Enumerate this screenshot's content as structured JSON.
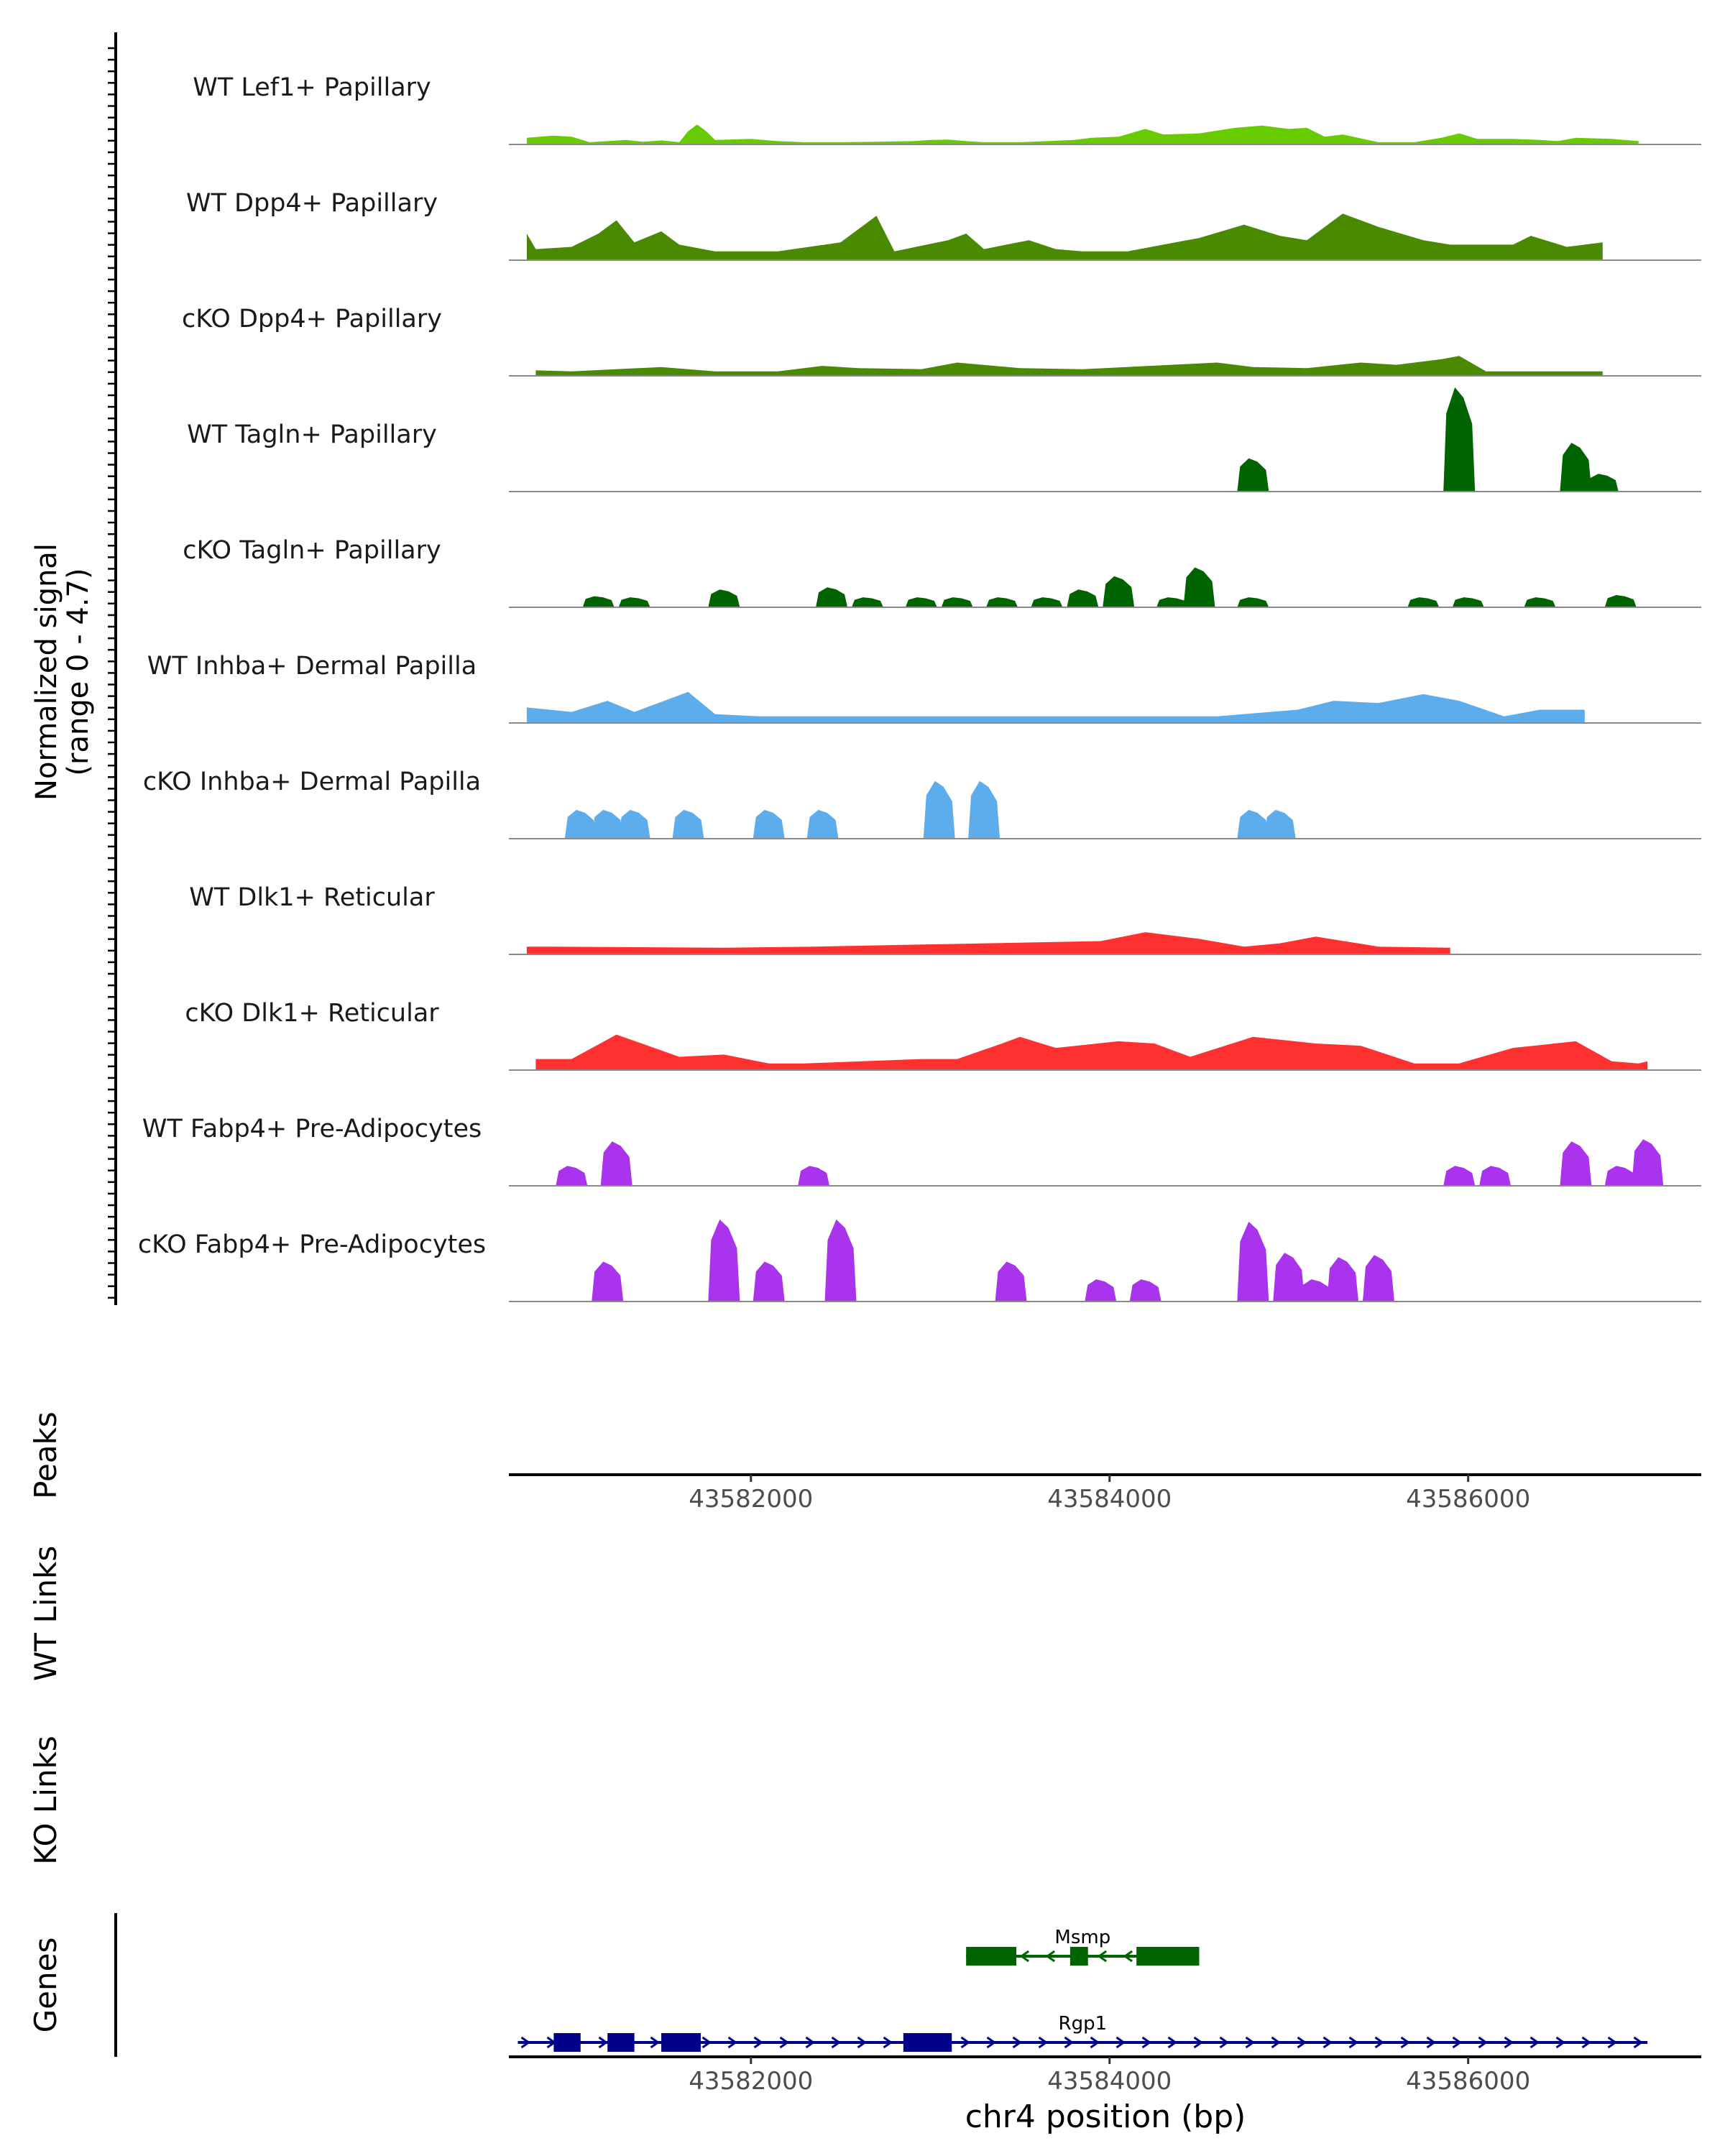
{
  "chart_data": {
    "type": "area",
    "title": "",
    "ylabel_line1": "Normalized signal",
    "ylabel_line2": "(range 0 - 4.7)",
    "ylim": [
      0,
      4.7
    ],
    "xlim": [
      43580650,
      43587300
    ],
    "xlabel": "chr4 position (bp)",
    "x_ticks": [
      43582000,
      43584000,
      43586000
    ],
    "x_tick_labels": [
      "43582000",
      "43584000",
      "43586000"
    ],
    "panel_labels": {
      "peaks": "Peaks",
      "wt_links": "WT Links",
      "ko_links": "KO Links",
      "genes": "Genes"
    },
    "tracks": [
      {
        "name": "WT Lef1+ Papillary",
        "color": "#66CC00",
        "fill": "continuous",
        "points": [
          [
            43580750,
            0.3
          ],
          [
            43580900,
            0.4
          ],
          [
            43581000,
            0.35
          ],
          [
            43581100,
            0.1
          ],
          [
            43581200,
            0.15
          ],
          [
            43581300,
            0.2
          ],
          [
            43581400,
            0.12
          ],
          [
            43581500,
            0.18
          ],
          [
            43581600,
            0.1
          ],
          [
            43581650,
            0.6
          ],
          [
            43581700,
            0.9
          ],
          [
            43581750,
            0.6
          ],
          [
            43581800,
            0.2
          ],
          [
            43582000,
            0.25
          ],
          [
            43582150,
            0.15
          ],
          [
            43582300,
            0.1
          ],
          [
            43582500,
            0.1
          ],
          [
            43582700,
            0.12
          ],
          [
            43582900,
            0.15
          ],
          [
            43583000,
            0.2
          ],
          [
            43583100,
            0.22
          ],
          [
            43583200,
            0.15
          ],
          [
            43583300,
            0.1
          ],
          [
            43583500,
            0.1
          ],
          [
            43583650,
            0.15
          ],
          [
            43583800,
            0.2
          ],
          [
            43583900,
            0.3
          ],
          [
            43584050,
            0.35
          ],
          [
            43584200,
            0.7
          ],
          [
            43584300,
            0.45
          ],
          [
            43584500,
            0.5
          ],
          [
            43584700,
            0.75
          ],
          [
            43584850,
            0.85
          ],
          [
            43585000,
            0.7
          ],
          [
            43585100,
            0.75
          ],
          [
            43585200,
            0.35
          ],
          [
            43585300,
            0.45
          ],
          [
            43585500,
            0.1
          ],
          [
            43585700,
            0.1
          ],
          [
            43585850,
            0.3
          ],
          [
            43585950,
            0.5
          ],
          [
            43586050,
            0.25
          ],
          [
            43586250,
            0.25
          ],
          [
            43586400,
            0.2
          ],
          [
            43586500,
            0.15
          ],
          [
            43586600,
            0.3
          ],
          [
            43586800,
            0.25
          ],
          [
            43586950,
            0.15
          ]
        ]
      },
      {
        "name": "WT Dpp4+ Papillary",
        "color": "#4A8A00",
        "fill": "continuous",
        "points": [
          [
            43580750,
            1.2
          ],
          [
            43580800,
            0.5
          ],
          [
            43581000,
            0.6
          ],
          [
            43581150,
            1.2
          ],
          [
            43581250,
            1.8
          ],
          [
            43581350,
            0.8
          ],
          [
            43581500,
            1.3
          ],
          [
            43581600,
            0.7
          ],
          [
            43581800,
            0.4
          ],
          [
            43582000,
            0.4
          ],
          [
            43582150,
            0.4
          ],
          [
            43582500,
            0.8
          ],
          [
            43582700,
            2.0
          ],
          [
            43582800,
            0.4
          ],
          [
            43583100,
            0.9
          ],
          [
            43583200,
            1.2
          ],
          [
            43583300,
            0.5
          ],
          [
            43583550,
            0.9
          ],
          [
            43583700,
            0.5
          ],
          [
            43583850,
            0.4
          ],
          [
            43584100,
            0.4
          ],
          [
            43584500,
            1.0
          ],
          [
            43584750,
            1.6
          ],
          [
            43584950,
            1.1
          ],
          [
            43585100,
            0.9
          ],
          [
            43585300,
            2.1
          ],
          [
            43585500,
            1.5
          ],
          [
            43585750,
            0.9
          ],
          [
            43585900,
            0.7
          ],
          [
            43586250,
            0.7
          ],
          [
            43586350,
            1.1
          ],
          [
            43586550,
            0.6
          ],
          [
            43586750,
            0.8
          ]
        ]
      },
      {
        "name": "cKO Dpp4+ Papillary",
        "color": "#4A8A00",
        "fill": "continuous",
        "points": [
          [
            43580800,
            0.25
          ],
          [
            43581000,
            0.2
          ],
          [
            43581500,
            0.4
          ],
          [
            43581800,
            0.2
          ],
          [
            43582150,
            0.2
          ],
          [
            43582400,
            0.45
          ],
          [
            43582600,
            0.35
          ],
          [
            43582950,
            0.3
          ],
          [
            43583150,
            0.6
          ],
          [
            43583500,
            0.35
          ],
          [
            43583850,
            0.3
          ],
          [
            43584600,
            0.6
          ],
          [
            43584800,
            0.4
          ],
          [
            43585100,
            0.35
          ],
          [
            43585400,
            0.6
          ],
          [
            43585600,
            0.5
          ],
          [
            43585850,
            0.75
          ],
          [
            43585950,
            0.9
          ],
          [
            43586100,
            0.2
          ],
          [
            43586750,
            0.2
          ]
        ]
      },
      {
        "name": "WT Tagln+ Papillary",
        "color": "#006400",
        "fill": "blocky",
        "points": [
          [
            43584800,
            1.5
          ],
          [
            43585950,
            4.7
          ],
          [
            43586600,
            2.2
          ],
          [
            43586750,
            0.8
          ]
        ]
      },
      {
        "name": "cKO Tagln+ Papillary",
        "color": "#006400",
        "fill": "blocky",
        "points": [
          [
            43581150,
            0.5
          ],
          [
            43581350,
            0.45
          ],
          [
            43581850,
            0.8
          ],
          [
            43582450,
            0.9
          ],
          [
            43582650,
            0.45
          ],
          [
            43582950,
            0.45
          ],
          [
            43583150,
            0.45
          ],
          [
            43583400,
            0.45
          ],
          [
            43583650,
            0.45
          ],
          [
            43583850,
            0.8
          ],
          [
            43584050,
            1.4
          ],
          [
            43584350,
            0.45
          ],
          [
            43584500,
            1.8
          ],
          [
            43584800,
            0.45
          ],
          [
            43585750,
            0.45
          ],
          [
            43586000,
            0.45
          ],
          [
            43586400,
            0.45
          ],
          [
            43586850,
            0.55
          ]
        ]
      },
      {
        "name": "WT Inhba+ Dermal Papilla",
        "color": "#5DADEC",
        "fill": "continuous",
        "points": [
          [
            43580750,
            0.7
          ],
          [
            43581000,
            0.5
          ],
          [
            43581200,
            1.0
          ],
          [
            43581350,
            0.5
          ],
          [
            43581650,
            1.4
          ],
          [
            43581800,
            0.4
          ],
          [
            43582050,
            0.3
          ],
          [
            43583650,
            0.3
          ],
          [
            43583900,
            0.3
          ],
          [
            43584600,
            0.3
          ],
          [
            43585050,
            0.6
          ],
          [
            43585250,
            1.0
          ],
          [
            43585500,
            0.9
          ],
          [
            43585750,
            1.3
          ],
          [
            43585950,
            1.0
          ],
          [
            43586200,
            0.3
          ],
          [
            43586400,
            0.6
          ],
          [
            43586650,
            0.6
          ]
        ]
      },
      {
        "name": "cKO Inhba+ Dermal Papilla",
        "color": "#5DADEC",
        "fill": "blocky",
        "points": [
          [
            43581050,
            1.3
          ],
          [
            43581200,
            1.3
          ],
          [
            43581350,
            1.3
          ],
          [
            43581650,
            1.3
          ],
          [
            43582100,
            1.3
          ],
          [
            43582400,
            1.3
          ],
          [
            43583050,
            2.6
          ],
          [
            43583300,
            2.6
          ],
          [
            43584800,
            1.3
          ],
          [
            43584950,
            1.3
          ]
        ]
      },
      {
        "name": "WT Dlk1+ Reticular",
        "color": "#FF3030",
        "fill": "continuous",
        "points": [
          [
            43580750,
            0.35
          ],
          [
            43580900,
            0.35
          ],
          [
            43581850,
            0.3
          ],
          [
            43582350,
            0.35
          ],
          [
            43583950,
            0.6
          ],
          [
            43584200,
            1.0
          ],
          [
            43584500,
            0.7
          ],
          [
            43584750,
            0.35
          ],
          [
            43584950,
            0.5
          ],
          [
            43585150,
            0.8
          ],
          [
            43585500,
            0.35
          ],
          [
            43585900,
            0.3
          ]
        ]
      },
      {
        "name": "cKO Dlk1+ Reticular",
        "color": "#FF3030",
        "fill": "continuous",
        "points": [
          [
            43580800,
            0.5
          ],
          [
            43581000,
            0.5
          ],
          [
            43581250,
            1.6
          ],
          [
            43581600,
            0.6
          ],
          [
            43581850,
            0.7
          ],
          [
            43582100,
            0.3
          ],
          [
            43582300,
            0.3
          ],
          [
            43582950,
            0.5
          ],
          [
            43583150,
            0.5
          ],
          [
            43583400,
            1.2
          ],
          [
            43583500,
            1.5
          ],
          [
            43583700,
            1.0
          ],
          [
            43584050,
            1.3
          ],
          [
            43584250,
            1.2
          ],
          [
            43584450,
            0.6
          ],
          [
            43584800,
            1.5
          ],
          [
            43585150,
            1.2
          ],
          [
            43585400,
            1.1
          ],
          [
            43585700,
            0.3
          ],
          [
            43585950,
            0.3
          ],
          [
            43586250,
            1.0
          ],
          [
            43586600,
            1.3
          ],
          [
            43586800,
            0.4
          ],
          [
            43586950,
            0.3
          ],
          [
            43587000,
            0.4
          ]
        ]
      },
      {
        "name": "WT Fabp4+ Pre-Adipocytes",
        "color": "#AA33EE",
        "fill": "blocky",
        "points": [
          [
            43581000,
            0.9
          ],
          [
            43581250,
            2.0
          ],
          [
            43582350,
            0.9
          ],
          [
            43585950,
            0.9
          ],
          [
            43586150,
            0.9
          ],
          [
            43586600,
            2.0
          ],
          [
            43586850,
            0.9
          ],
          [
            43587000,
            2.1
          ]
        ]
      },
      {
        "name": "cKO Fabp4+ Pre-Adipocytes",
        "color": "#AA33EE",
        "fill": "blocky",
        "points": [
          [
            43581200,
            1.8
          ],
          [
            43581850,
            3.7
          ],
          [
            43582100,
            1.8
          ],
          [
            43582500,
            3.7
          ],
          [
            43583450,
            1.8
          ],
          [
            43583950,
            1.0
          ],
          [
            43584200,
            1.0
          ],
          [
            43584800,
            3.6
          ],
          [
            43585000,
            2.2
          ],
          [
            43585150,
            1.0
          ],
          [
            43585300,
            2.0
          ],
          [
            43585500,
            2.1
          ]
        ]
      }
    ],
    "genes": [
      {
        "name": "Msmp",
        "color": "#006400",
        "strand": "-",
        "start": 43583200,
        "end": 43584500,
        "exons": [
          [
            43583200,
            43583480
          ],
          [
            43583780,
            43583880
          ],
          [
            43584150,
            43584500
          ]
        ]
      },
      {
        "name": "Rgp1",
        "color": "#00008B",
        "strand": "+",
        "start": 43580700,
        "end": 43587000,
        "exons": [
          [
            43580900,
            43581050
          ],
          [
            43581200,
            43581350
          ],
          [
            43581500,
            43581720
          ],
          [
            43582850,
            43583120
          ]
        ]
      }
    ]
  }
}
